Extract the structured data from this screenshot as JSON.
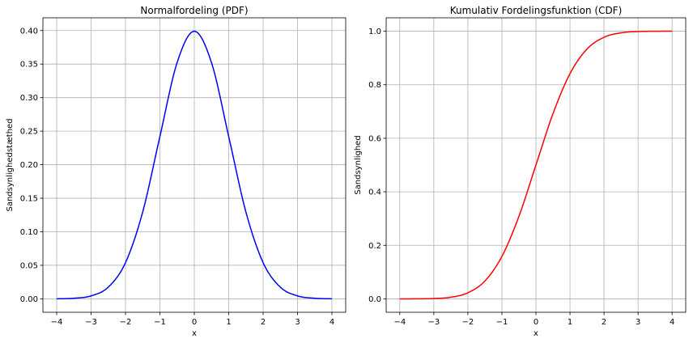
{
  "chart_data": [
    {
      "type": "line",
      "title": "Normalfordeling (PDF)",
      "xlabel": "x",
      "ylabel": "Sandsynlighedstæthed",
      "xlim": [
        -4.4,
        4.4
      ],
      "ylim": [
        -0.02,
        0.419
      ],
      "xticks": [
        -4,
        -3,
        -2,
        -1,
        0,
        1,
        2,
        3,
        4
      ],
      "xtick_labels": [
        "−4",
        "−3",
        "−2",
        "−1",
        "0",
        "1",
        "2",
        "3",
        "4"
      ],
      "yticks": [
        0.0,
        0.05,
        0.1,
        0.15,
        0.2,
        0.25,
        0.3,
        0.35,
        0.4
      ],
      "ytick_labels": [
        "0.00",
        "0.05",
        "0.10",
        "0.15",
        "0.20",
        "0.25",
        "0.30",
        "0.35",
        "0.40"
      ],
      "grid": true,
      "series": [
        {
          "color": "#0000ff",
          "x": [
            -4,
            -3.5,
            -3,
            -2.5,
            -2,
            -1.5,
            -1,
            -0.5,
            0,
            0.5,
            1,
            1.5,
            2,
            2.5,
            3,
            3.5,
            4
          ],
          "y": [
            0.0001,
            0.0009,
            0.0044,
            0.0175,
            0.054,
            0.1295,
            0.242,
            0.3521,
            0.3989,
            0.3521,
            0.242,
            0.1295,
            0.054,
            0.0175,
            0.0044,
            0.0009,
            0.0001
          ]
        }
      ]
    },
    {
      "type": "line",
      "title": "Kumulativ Fordelingsfunktion (CDF)",
      "xlabel": "x",
      "ylabel": "Sandsynlighed",
      "xlim": [
        -4.4,
        4.4
      ],
      "ylim": [
        -0.05,
        1.05
      ],
      "xticks": [
        -4,
        -3,
        -2,
        -1,
        0,
        1,
        2,
        3,
        4
      ],
      "xtick_labels": [
        "−4",
        "−3",
        "−2",
        "−1",
        "0",
        "1",
        "2",
        "3",
        "4"
      ],
      "yticks": [
        0.0,
        0.2,
        0.4,
        0.6,
        0.8,
        1.0
      ],
      "ytick_labels": [
        "0.0",
        "0.2",
        "0.4",
        "0.6",
        "0.8",
        "1.0"
      ],
      "grid": true,
      "series": [
        {
          "color": "#ff0000",
          "x": [
            -4,
            -3.5,
            -3,
            -2.5,
            -2,
            -1.5,
            -1,
            -0.5,
            0,
            0.5,
            1,
            1.5,
            2,
            2.5,
            3,
            3.5,
            4
          ],
          "y": [
            0.0,
            0.0002,
            0.0013,
            0.0062,
            0.0228,
            0.0668,
            0.1587,
            0.3085,
            0.5,
            0.6915,
            0.8413,
            0.9332,
            0.9772,
            0.9938,
            0.9987,
            0.9998,
            1.0
          ]
        }
      ]
    }
  ]
}
